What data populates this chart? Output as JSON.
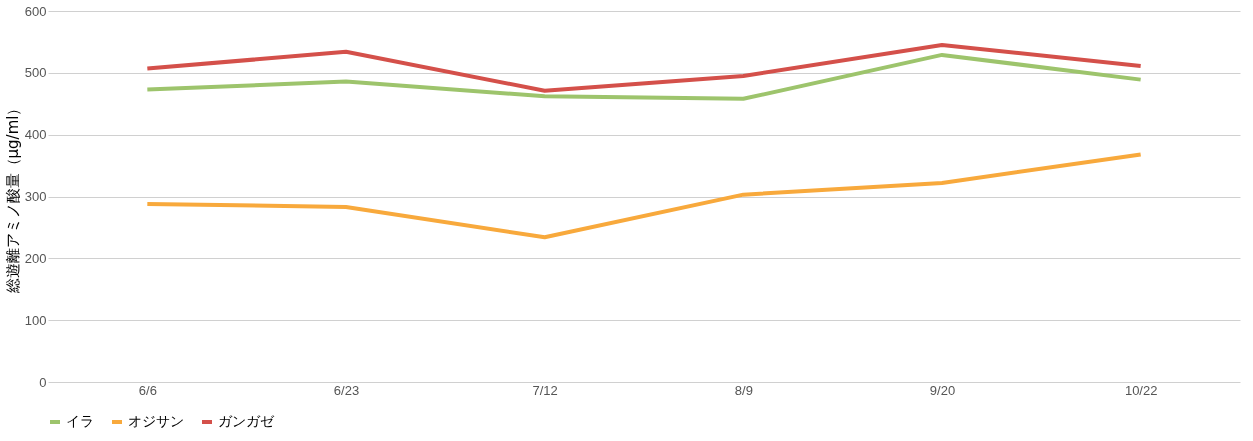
{
  "chart_data": {
    "type": "line",
    "ylabel": "総遊離アミノ酸量（μg/ml）",
    "categories": [
      "6/6",
      "6/23",
      "7/12",
      "8/9",
      "9/20",
      "10/22"
    ],
    "series": [
      {
        "name": "イラ",
        "color": "#9dc46c",
        "values": [
          473,
          486,
          462,
          458,
          529,
          489
        ]
      },
      {
        "name": "オジサン",
        "color": "#f8a93c",
        "values": [
          288,
          283,
          234,
          303,
          322,
          368
        ]
      },
      {
        "name": "ガンガゼ",
        "color": "#d4504a",
        "values": [
          507,
          534,
          471,
          495,
          545,
          511
        ]
      }
    ],
    "ylim": [
      0,
      600
    ],
    "yticks": [
      0,
      100,
      200,
      300,
      400,
      500,
      600
    ],
    "grid": "y",
    "legend": "bottom",
    "marker": "none",
    "line_style": "solid"
  }
}
